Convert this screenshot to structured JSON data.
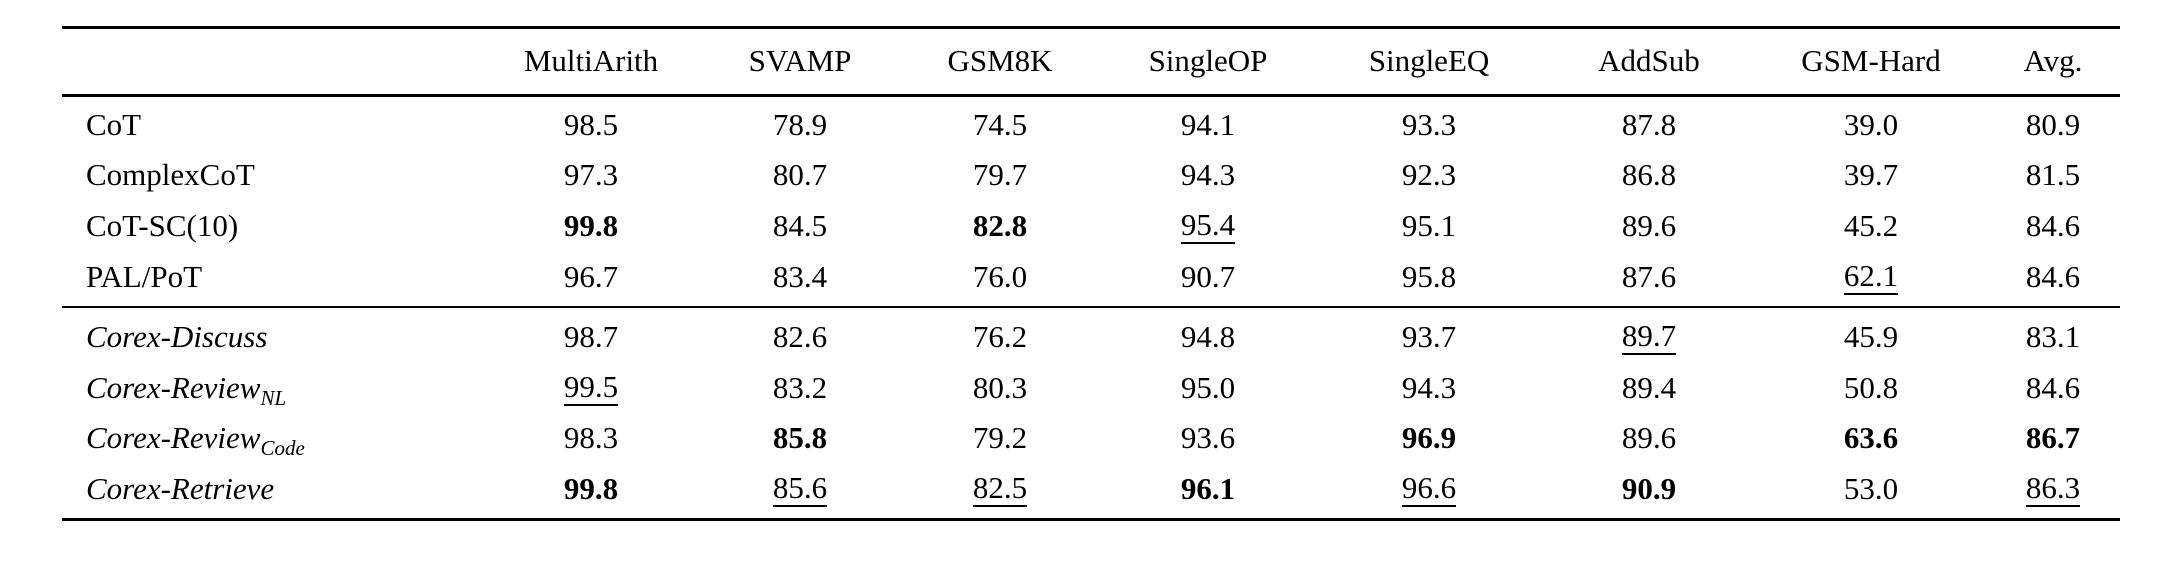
{
  "colors": {
    "background": "#ffffff",
    "text": "#000000",
    "rule": "#000000"
  },
  "table": {
    "header": [
      "",
      "MultiArith",
      "SVAMP",
      "GSM8K",
      "SingleOP",
      "SingleEQ",
      "AddSub",
      "GSM-Hard",
      "Avg."
    ],
    "style_legend": {
      "b": "bold (best score)",
      "u": "underlined (second-best score)"
    },
    "groups": [
      {
        "name": "baseline-methods",
        "rows": [
          {
            "label": "CoT",
            "label_style": "plain",
            "subscript": "",
            "cells": [
              "98.5",
              "78.9",
              "74.5",
              "94.1",
              "93.3",
              "87.8",
              "39.0",
              "80.9"
            ],
            "styles": [
              "",
              "",
              "",
              "",
              "",
              "",
              "",
              ""
            ]
          },
          {
            "label": "ComplexCoT",
            "label_style": "plain",
            "subscript": "",
            "cells": [
              "97.3",
              "80.7",
              "79.7",
              "94.3",
              "92.3",
              "86.8",
              "39.7",
              "81.5"
            ],
            "styles": [
              "",
              "",
              "",
              "",
              "",
              "",
              "",
              ""
            ]
          },
          {
            "label": "CoT-SC(10)",
            "label_style": "plain",
            "subscript": "",
            "cells": [
              "99.8",
              "84.5",
              "82.8",
              "95.4",
              "95.1",
              "89.6",
              "45.2",
              "84.6"
            ],
            "styles": [
              "b",
              "",
              "b",
              "u",
              "",
              "",
              "",
              ""
            ]
          },
          {
            "label": "PAL/PoT",
            "label_style": "plain",
            "subscript": "",
            "cells": [
              "96.7",
              "83.4",
              "76.0",
              "90.7",
              "95.8",
              "87.6",
              "62.1",
              "84.6"
            ],
            "styles": [
              "",
              "",
              "",
              "",
              "",
              "",
              "u",
              ""
            ]
          }
        ]
      },
      {
        "name": "corex-methods",
        "rows": [
          {
            "label": "Corex-Discuss",
            "label_style": "italic",
            "subscript": "",
            "cells": [
              "98.7",
              "82.6",
              "76.2",
              "94.8",
              "93.7",
              "89.7",
              "45.9",
              "83.1"
            ],
            "styles": [
              "",
              "",
              "",
              "",
              "",
              "u",
              "",
              ""
            ]
          },
          {
            "label": "Corex-Review",
            "label_style": "italic",
            "subscript": "NL",
            "cells": [
              "99.5",
              "83.2",
              "80.3",
              "95.0",
              "94.3",
              "89.4",
              "50.8",
              "84.6"
            ],
            "styles": [
              "u",
              "",
              "",
              "",
              "",
              "",
              "",
              ""
            ]
          },
          {
            "label": "Corex-Review",
            "label_style": "italic",
            "subscript": "Code",
            "cells": [
              "98.3",
              "85.8",
              "79.2",
              "93.6",
              "96.9",
              "89.6",
              "63.6",
              "86.7"
            ],
            "styles": [
              "",
              "b",
              "",
              "",
              "b",
              "",
              "b",
              "b"
            ]
          },
          {
            "label": "Corex-Retrieve",
            "label_style": "italic",
            "subscript": "",
            "cells": [
              "99.8",
              "85.6",
              "82.5",
              "96.1",
              "96.6",
              "90.9",
              "53.0",
              "86.3"
            ],
            "styles": [
              "b",
              "u",
              "u",
              "b",
              "u",
              "b",
              "",
              "u"
            ]
          }
        ]
      }
    ]
  }
}
